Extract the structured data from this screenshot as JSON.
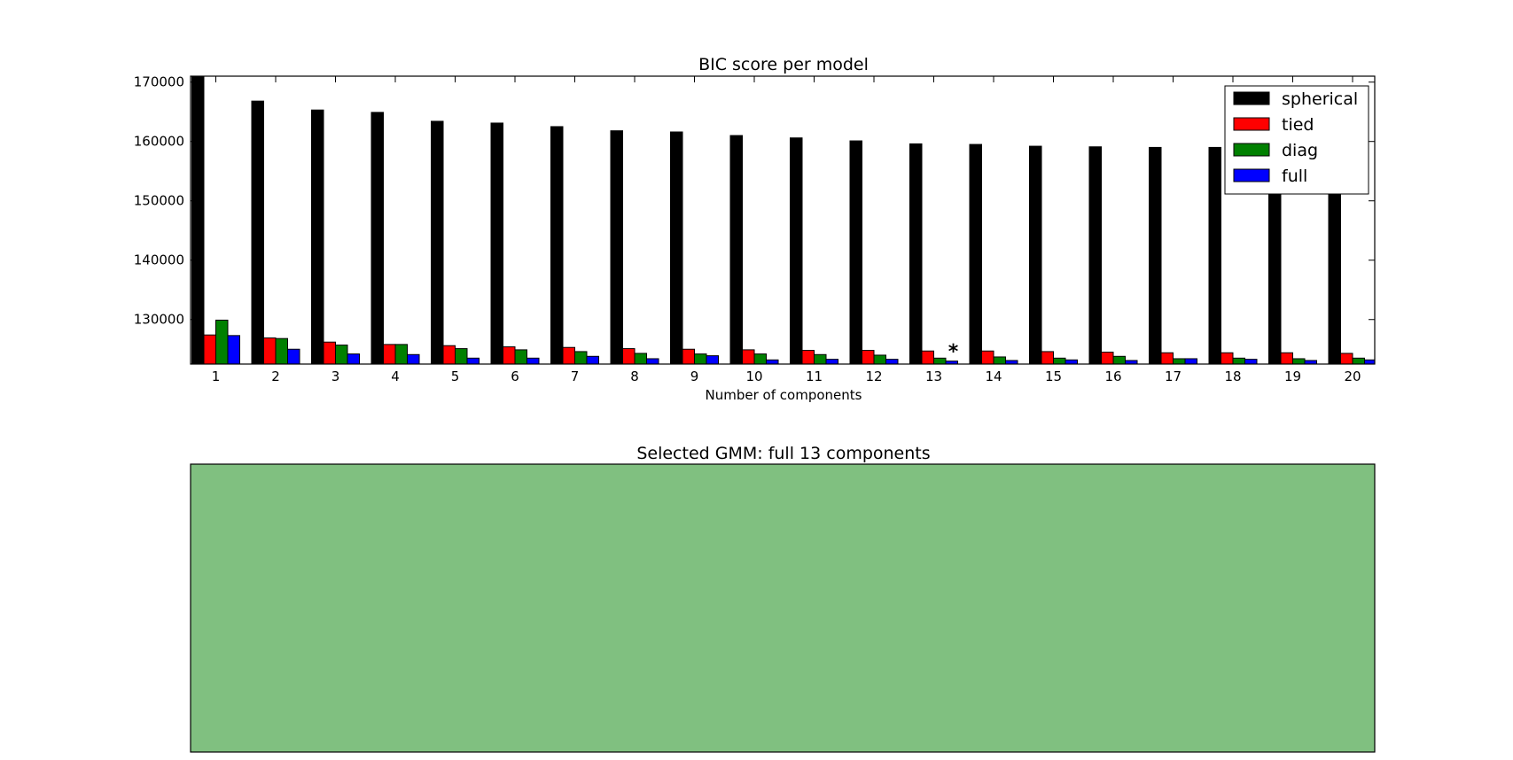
{
  "chart_data": [
    {
      "type": "bar",
      "title": "BIC score per model",
      "xlabel": "Number of components",
      "ylabel": "",
      "ylim": [
        122500,
        171000
      ],
      "yticks": [
        130000,
        140000,
        150000,
        160000,
        170000
      ],
      "ytick_labels": [
        "130000",
        "140000",
        "150000",
        "160000",
        "170000"
      ],
      "categories": [
        "1",
        "2",
        "3",
        "4",
        "5",
        "6",
        "7",
        "8",
        "9",
        "10",
        "11",
        "12",
        "13",
        "14",
        "15",
        "16",
        "17",
        "18",
        "19",
        "20"
      ],
      "grid": false,
      "legend_position": "top-right",
      "series": [
        {
          "name": "spherical",
          "color": "#000000",
          "values": [
            171500,
            166800,
            165300,
            164900,
            163400,
            163100,
            162500,
            161800,
            161600,
            161000,
            160600,
            160100,
            159600,
            159500,
            159200,
            159100,
            159000,
            159000,
            158000,
            157000
          ]
        },
        {
          "name": "tied",
          "color": "#ff0000",
          "values": [
            127400,
            126900,
            126200,
            125800,
            125600,
            125400,
            125300,
            125100,
            125000,
            124900,
            124800,
            124800,
            124700,
            124700,
            124600,
            124500,
            124400,
            124400,
            124400,
            124300
          ]
        },
        {
          "name": "diag",
          "color": "#008000",
          "values": [
            129900,
            126800,
            125700,
            125800,
            125100,
            124900,
            124600,
            124300,
            124200,
            124200,
            124100,
            124000,
            123500,
            123700,
            123500,
            123800,
            123400,
            123500,
            123400,
            123500
          ]
        },
        {
          "name": "full",
          "color": "#0000ff",
          "values": [
            127300,
            125000,
            124200,
            124100,
            123500,
            123500,
            123800,
            123400,
            123900,
            123200,
            123300,
            123300,
            123000,
            123100,
            123200,
            123100,
            123400,
            123300,
            123100,
            123200
          ]
        }
      ],
      "annotation": {
        "text": "*",
        "category": "13",
        "series": "full"
      }
    },
    {
      "type": "scatter",
      "title": "Selected GMM: full 13 components",
      "background_color": "#80c080",
      "points": []
    }
  ]
}
